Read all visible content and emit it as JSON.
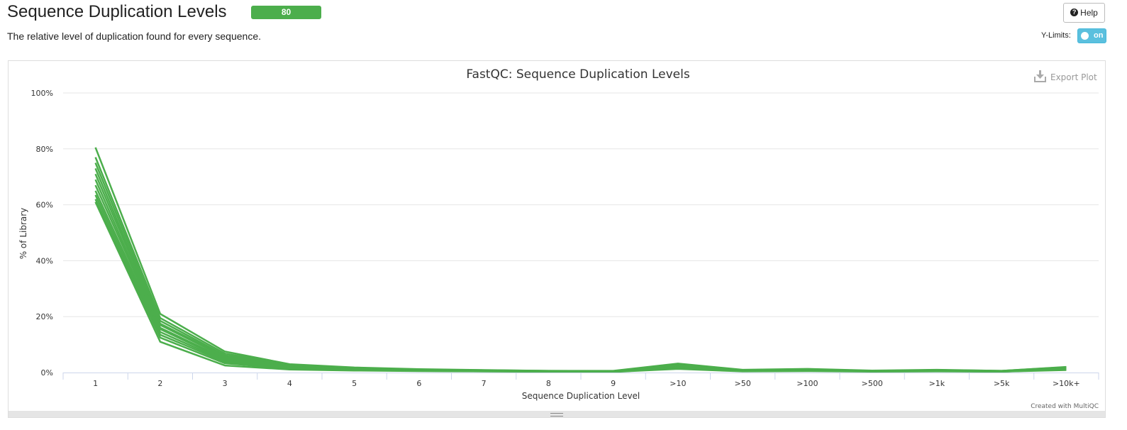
{
  "header": {
    "title": "Sequence Duplication Levels",
    "status_badge": "80",
    "help_label": "Help",
    "subtitle": "The relative level of duplication found for every sequence.",
    "ylimits_label": "Y-Limits:",
    "ylimits_toggle": "on"
  },
  "plot": {
    "export_label": "Export Plot",
    "credit": "Created with MultiQC"
  },
  "colors": {
    "series": "#4cae4c",
    "badge": "#4cae4c",
    "toggle": "#5bc0de"
  },
  "chart_data": {
    "type": "line",
    "title": "FastQC: Sequence Duplication Levels",
    "xlabel": "Sequence Duplication Level",
    "ylabel": "% of Library",
    "categories": [
      "1",
      "2",
      "3",
      "4",
      "5",
      "6",
      "7",
      "8",
      "9",
      ">10",
      ">50",
      ">100",
      ">500",
      ">1k",
      ">5k",
      ">10k+"
    ],
    "y_ticks": [
      "0%",
      "20%",
      "40%",
      "60%",
      "80%",
      "100%"
    ],
    "ylim": [
      0,
      100
    ],
    "grid": true,
    "series": [
      {
        "values": [
          80.5,
          21.0,
          7.5,
          3.0,
          1.8,
          1.2,
          0.9,
          0.6,
          0.6,
          3.2,
          1.0,
          1.3,
          0.7,
          1.0,
          0.6,
          2.0
        ]
      },
      {
        "values": [
          77.0,
          19.5,
          6.8,
          2.8,
          1.6,
          1.1,
          0.8,
          0.6,
          0.5,
          3.0,
          0.9,
          1.2,
          0.6,
          0.9,
          0.6,
          1.9
        ]
      },
      {
        "values": [
          75.0,
          18.5,
          6.2,
          2.6,
          1.5,
          1.0,
          0.8,
          0.5,
          0.5,
          2.9,
          0.9,
          1.1,
          0.6,
          0.9,
          0.5,
          1.8
        ]
      },
      {
        "values": [
          73.0,
          17.5,
          5.8,
          2.4,
          1.4,
          1.0,
          0.7,
          0.5,
          0.5,
          2.7,
          0.8,
          1.0,
          0.6,
          0.8,
          0.5,
          1.7
        ]
      },
      {
        "values": [
          71.0,
          17.0,
          5.5,
          2.3,
          1.3,
          0.9,
          0.7,
          0.5,
          0.4,
          2.6,
          0.8,
          1.0,
          0.5,
          0.8,
          0.5,
          1.6
        ]
      },
      {
        "values": [
          69.0,
          16.0,
          5.0,
          2.1,
          1.2,
          0.9,
          0.6,
          0.4,
          0.4,
          2.4,
          0.7,
          0.9,
          0.5,
          0.7,
          0.4,
          1.5
        ]
      },
      {
        "values": [
          67.0,
          15.5,
          4.6,
          1.9,
          1.1,
          0.8,
          0.6,
          0.4,
          0.4,
          2.2,
          0.7,
          0.8,
          0.5,
          0.7,
          0.4,
          1.4
        ]
      },
      {
        "values": [
          65.0,
          14.5,
          4.2,
          1.8,
          1.0,
          0.7,
          0.5,
          0.4,
          0.3,
          2.0,
          0.6,
          0.8,
          0.4,
          0.6,
          0.4,
          1.3
        ]
      },
      {
        "values": [
          63.5,
          13.5,
          3.8,
          1.6,
          0.9,
          0.7,
          0.5,
          0.3,
          0.3,
          1.8,
          0.6,
          0.7,
          0.4,
          0.6,
          0.3,
          1.2
        ]
      },
      {
        "values": [
          62.0,
          12.5,
          3.3,
          1.4,
          0.8,
          0.6,
          0.4,
          0.3,
          0.3,
          1.6,
          0.5,
          0.6,
          0.4,
          0.5,
          0.3,
          1.1
        ]
      },
      {
        "values": [
          61.0,
          11.0,
          2.5,
          1.1,
          0.7,
          0.5,
          0.4,
          0.3,
          0.2,
          1.3,
          0.4,
          0.5,
          0.3,
          0.4,
          0.3,
          0.9
        ]
      }
    ]
  }
}
